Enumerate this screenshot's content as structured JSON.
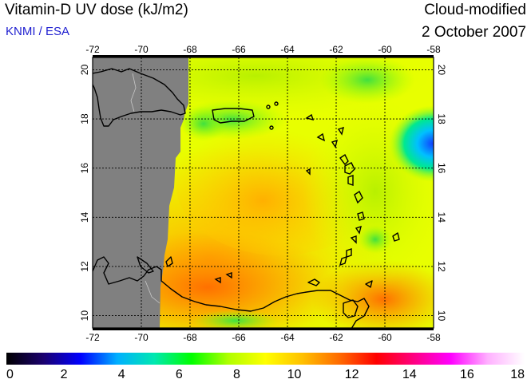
{
  "header": {
    "title": "Vitamin-D UV dose (kJ/m2)",
    "credit": "KNMI / ESA",
    "mode": "Cloud-modified",
    "date": "2 October 2007"
  },
  "map": {
    "lon_range": [
      -72,
      -58
    ],
    "lat_range": [
      9.5,
      20.5
    ],
    "lon_ticks": [
      -72,
      -70,
      -68,
      -66,
      -64,
      -62,
      -60,
      -58
    ],
    "lat_ticks": [
      10,
      12,
      14,
      16,
      18,
      20
    ],
    "gridlines": true,
    "no_data_color": "#808080"
  },
  "colorbar": {
    "min": 0,
    "max": 18,
    "ticks": [
      0,
      2,
      4,
      6,
      8,
      10,
      12,
      14,
      16,
      18
    ],
    "colors": [
      "#000000",
      "#1a006e",
      "#0000ff",
      "#00b0ff",
      "#00e8b0",
      "#00ff00",
      "#b0ff00",
      "#ffff00",
      "#ffc000",
      "#ff6a00",
      "#ff0000",
      "#ff0080",
      "#ff00ff",
      "#ffb0ff",
      "#ffffff"
    ]
  }
}
